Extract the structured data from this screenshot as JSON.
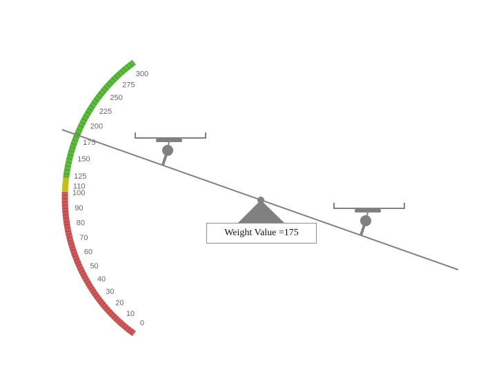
{
  "gauge": {
    "min": 0,
    "max": 300,
    "tick_labels": [
      "0",
      "10",
      "20",
      "30",
      "40",
      "50",
      "60",
      "70",
      "80",
      "90",
      "100",
      "110",
      "125",
      "150",
      "175",
      "200",
      "225",
      "250",
      "275",
      "300"
    ],
    "bands": [
      {
        "from": 0,
        "to": 100,
        "color": "#d05a5a",
        "name": "red-band"
      },
      {
        "from": 100,
        "to": 120,
        "color": "#d8d32a",
        "name": "yellow-band"
      },
      {
        "from": 120,
        "to": 300,
        "color": "#5bbb3c",
        "name": "green-band"
      }
    ],
    "value": 175
  },
  "scale": {
    "readout_label": "Weight Value = ",
    "readout_value": "175",
    "beam_color": "#808080"
  }
}
